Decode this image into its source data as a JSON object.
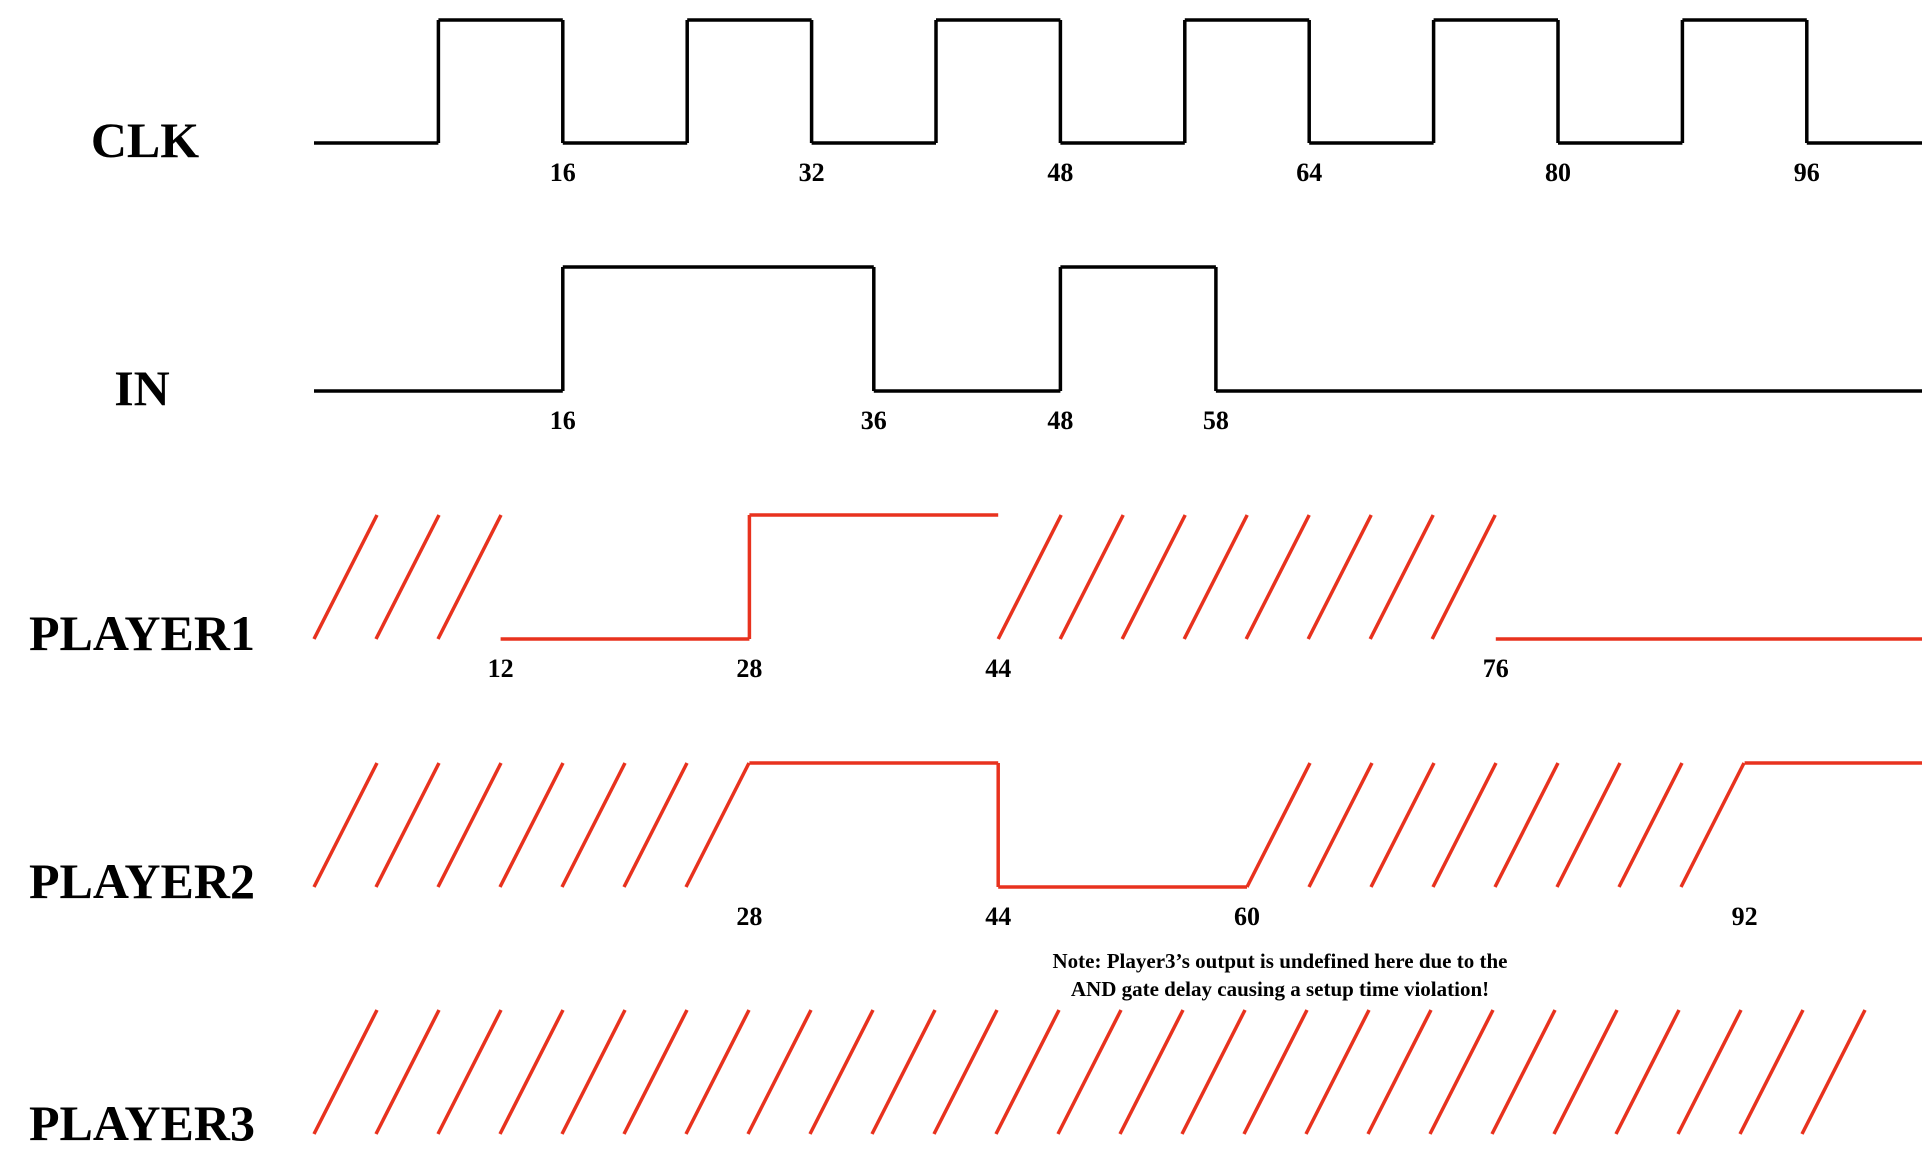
{
  "signals": [
    {
      "name": "CLK",
      "color": "#000000",
      "kind": "waveform",
      "segments": [
        {
          "from": 0,
          "to": 8,
          "level": 0
        },
        {
          "from": 8,
          "to": 16,
          "level": 1
        },
        {
          "from": 16,
          "to": 24,
          "level": 0
        },
        {
          "from": 24,
          "to": 32,
          "level": 1
        },
        {
          "from": 32,
          "to": 40,
          "level": 0
        },
        {
          "from": 40,
          "to": 48,
          "level": 1
        },
        {
          "from": 48,
          "to": 56,
          "level": 0
        },
        {
          "from": 56,
          "to": 64,
          "level": 1
        },
        {
          "from": 64,
          "to": 72,
          "level": 0
        },
        {
          "from": 72,
          "to": 80,
          "level": 1
        },
        {
          "from": 80,
          "to": 88,
          "level": 0
        },
        {
          "from": 88,
          "to": 96,
          "level": 1
        },
        {
          "from": 96,
          "to": 104,
          "level": 0
        }
      ],
      "labels": [
        16,
        32,
        48,
        64,
        80,
        96
      ]
    },
    {
      "name": "IN",
      "color": "#000000",
      "kind": "waveform",
      "segments": [
        {
          "from": 0,
          "to": 16,
          "level": 0
        },
        {
          "from": 16,
          "to": 36,
          "level": 1
        },
        {
          "from": 36,
          "to": 48,
          "level": 0
        },
        {
          "from": 48,
          "to": 58,
          "level": 1
        },
        {
          "from": 58,
          "to": 104,
          "level": 0
        }
      ],
      "labels": [
        16,
        36,
        48,
        58
      ]
    },
    {
      "name": "PLAYER1",
      "color": "#e8321e",
      "kind": "waveform",
      "segments": [
        {
          "from": 0,
          "to": 12,
          "level": "undefined"
        },
        {
          "from": 12,
          "to": 28,
          "level": 0
        },
        {
          "from": 28,
          "to": 44,
          "level": 1
        },
        {
          "from": 44,
          "to": 76,
          "level": "undefined"
        },
        {
          "from": 76,
          "to": 104,
          "level": 0
        }
      ],
      "labels": [
        12,
        28,
        44,
        76
      ]
    },
    {
      "name": "PLAYER2",
      "color": "#e8321e",
      "kind": "waveform",
      "segments": [
        {
          "from": 0,
          "to": 28,
          "level": "undefined"
        },
        {
          "from": 28,
          "to": 44,
          "level": 1
        },
        {
          "from": 44,
          "to": 60,
          "level": 0
        },
        {
          "from": 60,
          "to": 92,
          "level": "undefined"
        },
        {
          "from": 92,
          "to": 104,
          "level": 1
        }
      ],
      "labels": [
        28,
        44,
        60,
        92
      ]
    },
    {
      "name": "PLAYER3",
      "color": "#e8321e",
      "kind": "waveform",
      "segments": [
        {
          "from": 0,
          "to": 104,
          "level": "undefined"
        }
      ],
      "labels": []
    }
  ],
  "note": {
    "lines": [
      "Note: Player3’s output is undefined here due to the",
      "AND gate delay causing a setup time violation!"
    ]
  }
}
